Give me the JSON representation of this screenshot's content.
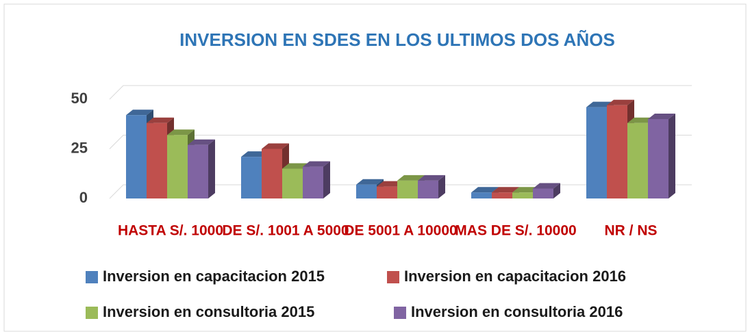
{
  "chart_data": {
    "type": "bar3d",
    "title": "INVERSION EN SDES EN LOS ULTIMOS DOS AÑOS",
    "categories": [
      "HASTA S/. 1000",
      "DE S/. 1001 A 5000",
      "DE 5001 A 10000",
      "MAS DE S/. 10000",
      "NR / NS"
    ],
    "series": [
      {
        "name": "Inversion en capacitacion 2015",
        "color": "#4f81bd",
        "values": [
          42,
          21,
          7,
          3,
          46
        ]
      },
      {
        "name": "Inversion en capacitacion 2016",
        "color": "#c0504d",
        "values": [
          38,
          25,
          6,
          3,
          47
        ]
      },
      {
        "name": "Inversion en consultoria 2015",
        "color": "#9bbb59",
        "values": [
          32,
          15,
          9,
          3,
          38
        ]
      },
      {
        "name": "Inversion en consultoria 2016",
        "color": "#8064a2",
        "values": [
          27,
          16,
          9,
          5,
          40
        ]
      }
    ],
    "ylim": [
      0,
      50
    ],
    "yticks": [
      0,
      25,
      50
    ],
    "grid": true
  }
}
